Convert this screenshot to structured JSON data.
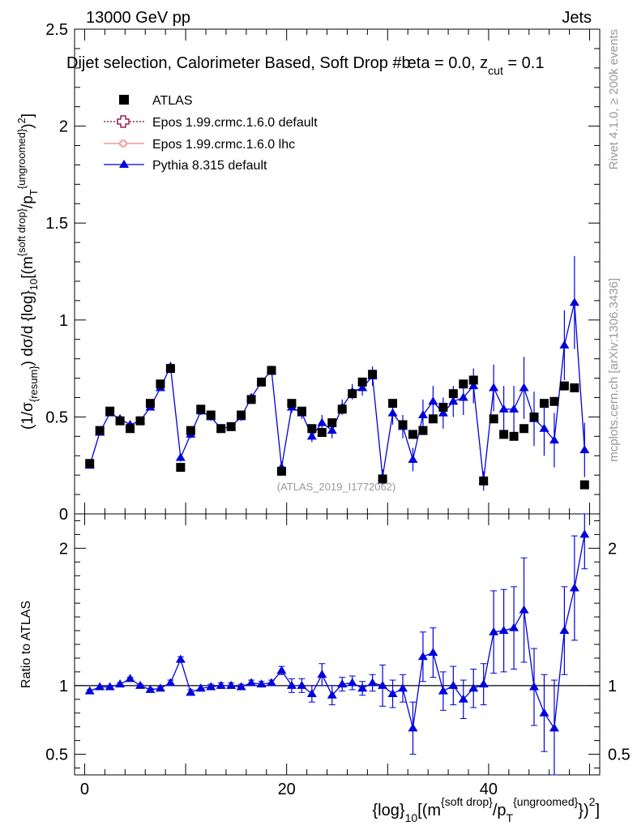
{
  "header": {
    "energy": "13000 GeV pp",
    "category": "Jets",
    "selection_prefix": "Dijet selection, Calorimeter Based, Soft Drop #b",
    "beta_label": "eta = 0.0, z",
    "z_sub": "cut",
    "z_value": " = 0.1"
  },
  "side_labels": {
    "rivet": "Rivet 4.1.0, ≥ 200k events",
    "mcplots": "mcplots.cern.ch [arXiv:1306.3436]"
  },
  "watermark": "(ATLAS_2019_I1772062)",
  "colors": {
    "atlas": "#000000",
    "epos_default": "#800033",
    "epos_lhc": "#f08080",
    "pythia": "#0000dd"
  },
  "chart_data": [
    {
      "type": "scatter",
      "panel": "main",
      "xlim": [
        -1,
        51
      ],
      "ylim": [
        0,
        2.5
      ],
      "yticks": [
        {
          "v": 0,
          "label": "0"
        },
        {
          "v": 0.5,
          "label": "0.5"
        },
        {
          "v": 1,
          "label": "1"
        },
        {
          "v": 1.5,
          "label": "1.5"
        },
        {
          "v": 2,
          "label": "2"
        },
        {
          "v": 2.5,
          "label": "2.5"
        }
      ],
      "ylabel": "(1/σ{resum}) dσ/d {log}10[(m{soft drop}/pT{ungroomed})2]",
      "legend": [
        {
          "label": "ATLAS",
          "marker": "square"
        },
        {
          "label": "Epos 1.99.crmc.1.6.0 default",
          "marker": "cross"
        },
        {
          "label": "Epos 1.99.crmc.1.6.0 lhc",
          "marker": "small-cross"
        },
        {
          "label": "Pythia 8.315 default",
          "marker": "triangle"
        }
      ],
      "x": [
        0.5,
        1.5,
        2.5,
        3.5,
        4.5,
        5.5,
        6.5,
        7.5,
        8.5,
        9.5,
        10.5,
        11.5,
        12.5,
        13.5,
        14.5,
        15.5,
        16.5,
        17.5,
        18.5,
        19.5,
        20.5,
        21.5,
        22.5,
        23.5,
        24.5,
        25.5,
        26.5,
        27.5,
        28.5,
        29.5,
        30.5,
        31.5,
        32.5,
        33.5,
        34.5,
        35.5,
        36.5,
        37.5,
        38.5,
        39.5,
        40.5,
        41.5,
        42.5,
        43.5,
        44.5,
        45.5,
        46.5,
        47.5,
        48.5,
        49.5
      ],
      "series": [
        {
          "name": "ATLAS",
          "values": [
            0.26,
            0.43,
            0.53,
            0.48,
            0.44,
            0.48,
            0.57,
            0.67,
            0.75,
            0.24,
            0.43,
            0.54,
            0.51,
            0.44,
            0.45,
            0.51,
            0.59,
            0.68,
            0.74,
            0.22,
            0.57,
            0.53,
            0.44,
            0.42,
            0.47,
            0.54,
            0.62,
            0.68,
            0.72,
            0.18,
            0.57,
            0.46,
            0.41,
            0.43,
            0.49,
            0.55,
            0.62,
            0.67,
            0.69,
            0.17,
            0.49,
            0.41,
            0.4,
            0.44,
            0.5,
            0.57,
            0.58,
            0.66,
            0.65,
            0.15
          ]
        },
        {
          "name": "Pythia 8.315 default",
          "values": [
            0.25,
            0.42,
            0.52,
            0.49,
            0.46,
            0.48,
            0.55,
            0.65,
            0.76,
            0.29,
            0.41,
            0.53,
            0.5,
            0.44,
            0.45,
            0.5,
            0.6,
            0.68,
            0.74,
            0.24,
            0.55,
            0.52,
            0.4,
            0.47,
            0.43,
            0.55,
            0.63,
            0.65,
            0.71,
            0.19,
            0.52,
            0.45,
            0.28,
            0.51,
            0.58,
            0.52,
            0.58,
            0.6,
            0.66,
            0.17,
            0.65,
            0.54,
            0.54,
            0.65,
            0.49,
            0.44,
            0.38,
            0.87,
            1.09,
            0.33
          ],
          "errors": [
            0.01,
            0.01,
            0.01,
            0.01,
            0.01,
            0.01,
            0.01,
            0.01,
            0.02,
            0.02,
            0.02,
            0.02,
            0.02,
            0.02,
            0.02,
            0.02,
            0.02,
            0.02,
            0.02,
            0.03,
            0.03,
            0.03,
            0.03,
            0.04,
            0.04,
            0.04,
            0.04,
            0.04,
            0.05,
            0.04,
            0.06,
            0.06,
            0.06,
            0.08,
            0.08,
            0.08,
            0.08,
            0.09,
            0.09,
            0.05,
            0.12,
            0.12,
            0.12,
            0.16,
            0.14,
            0.14,
            0.14,
            0.18,
            0.24,
            0.14
          ]
        }
      ]
    },
    {
      "type": "line",
      "panel": "ratio",
      "xlim": [
        -1,
        51
      ],
      "ylim": [
        0.35,
        2.25
      ],
      "ylabel": "Ratio to ATLAS",
      "xlabel": "{log}10[(m{soft drop}/pT{ungroomed})2]",
      "xticks": [
        {
          "v": 0,
          "label": "0"
        },
        {
          "v": 20,
          "label": "20"
        },
        {
          "v": 40,
          "label": "40"
        }
      ],
      "yticks": [
        {
          "v": 0.5,
          "label": "0.5"
        },
        {
          "v": 1,
          "label": "1"
        },
        {
          "v": 2,
          "label": "2"
        }
      ],
      "series": [
        {
          "name": "Pythia 8.315 default",
          "values": [
            0.96,
            0.99,
            0.99,
            1.01,
            1.05,
            1.0,
            0.97,
            0.98,
            1.02,
            1.19,
            0.95,
            0.98,
            0.99,
            1.0,
            1.0,
            0.99,
            1.02,
            1.01,
            1.02,
            1.11,
            1.0,
            1.0,
            0.94,
            1.08,
            0.93,
            1.01,
            1.02,
            0.98,
            1.02,
            1.0,
            0.94,
            0.98,
            0.69,
            1.21,
            1.24,
            0.96,
            1.0,
            0.9,
            0.98,
            1.01,
            1.39,
            1.4,
            1.42,
            1.55,
            0.99,
            0.8,
            0.69,
            1.4,
            1.71,
            2.1
          ],
          "errors": [
            0.01,
            0.01,
            0.01,
            0.01,
            0.01,
            0.01,
            0.01,
            0.01,
            0.02,
            0.02,
            0.02,
            0.02,
            0.02,
            0.02,
            0.02,
            0.02,
            0.02,
            0.02,
            0.02,
            0.03,
            0.05,
            0.05,
            0.06,
            0.08,
            0.07,
            0.05,
            0.05,
            0.05,
            0.06,
            0.15,
            0.1,
            0.1,
            0.19,
            0.18,
            0.18,
            0.14,
            0.14,
            0.14,
            0.14,
            0.15,
            0.3,
            0.3,
            0.3,
            0.38,
            0.28,
            0.28,
            0.35,
            0.32,
            0.38,
            0.25
          ]
        }
      ]
    }
  ]
}
